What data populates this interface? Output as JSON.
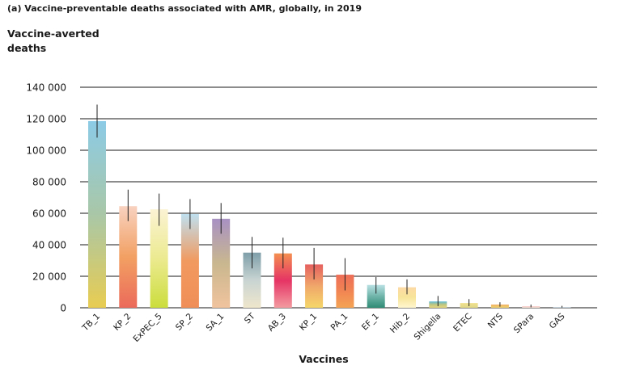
{
  "chart_data": {
    "type": "bar",
    "title": "(a) Vaccine-preventable deaths associated with AMR, globally, in 2019",
    "ylabel": [
      "Vaccine-averted",
      "deaths"
    ],
    "xlabel": "Vaccines",
    "ylim": [
      0,
      140000
    ],
    "yticks": [
      0,
      20000,
      40000,
      60000,
      80000,
      100000,
      120000,
      140000
    ],
    "ytick_labels": [
      "0",
      "20 000",
      "40 000",
      "60 000",
      "80 000",
      "100 000",
      "120 000",
      "140 000"
    ],
    "grid": true,
    "categories": [
      "TB_1",
      "KP_2",
      "ExPEC_5",
      "SP_2",
      "SA_1",
      "ST",
      "AB_3",
      "KP_1",
      "PA_1",
      "EF_1",
      "Hib_2",
      "Shigella",
      "ETEC",
      "NTS",
      "SPara",
      "GAS"
    ],
    "values": [
      118500,
      64500,
      62500,
      59500,
      56500,
      35000,
      34500,
      27500,
      21000,
      14500,
      13000,
      4000,
      3000,
      2000,
      1000,
      500
    ],
    "error_high": [
      129000,
      75000,
      72500,
      69000,
      66500,
      45000,
      44500,
      38000,
      31500,
      19500,
      18000,
      7500,
      5500,
      3500,
      2000,
      1200
    ],
    "error_low": [
      108000,
      55000,
      52000,
      50000,
      47000,
      25000,
      25000,
      18000,
      11000,
      9000,
      8500,
      1000,
      1000,
      700,
      300,
      100
    ],
    "colors": [
      [
        "#8ccbe6",
        "#a9c7a7",
        "#e8cc52"
      ],
      [
        "#f8d2c0",
        "#f2a063",
        "#eb6a5a"
      ],
      [
        "#fbf3d4",
        "#ecea90",
        "#cbdd3c"
      ],
      [
        "#bfe0ef",
        "#f19a5f",
        "#f08e58"
      ],
      [
        "#a891c3",
        "#c9b78f",
        "#f0c39d"
      ],
      [
        "#7e9ea9",
        "#c8d4d2",
        "#efe6cc"
      ],
      [
        "#f48f50",
        "#e53465",
        "#f39ba0"
      ],
      [
        "#e5605f",
        "#f0a76a",
        "#f5d76a"
      ],
      [
        "#ee6d57",
        "#f18553",
        "#f4a354"
      ],
      [
        "#b9e0e3",
        "#6fb4a9",
        "#2f8b74"
      ],
      [
        "#fdd9a4",
        "#f7e59a",
        "#fff6cf"
      ],
      [
        "#5fbcd8",
        "#c0c57e",
        "#e6d77f"
      ],
      [
        "#f0e08a",
        "#e7dc8c",
        "#e1d889"
      ],
      [
        "#f1a85e",
        "#efc565",
        "#f0d47a"
      ],
      [
        "#f8c9c9",
        "#f5d8cf",
        "#fae6d8"
      ],
      [
        "#b7c9d6",
        "#c5d2dc",
        "#d4dfe6"
      ]
    ]
  }
}
